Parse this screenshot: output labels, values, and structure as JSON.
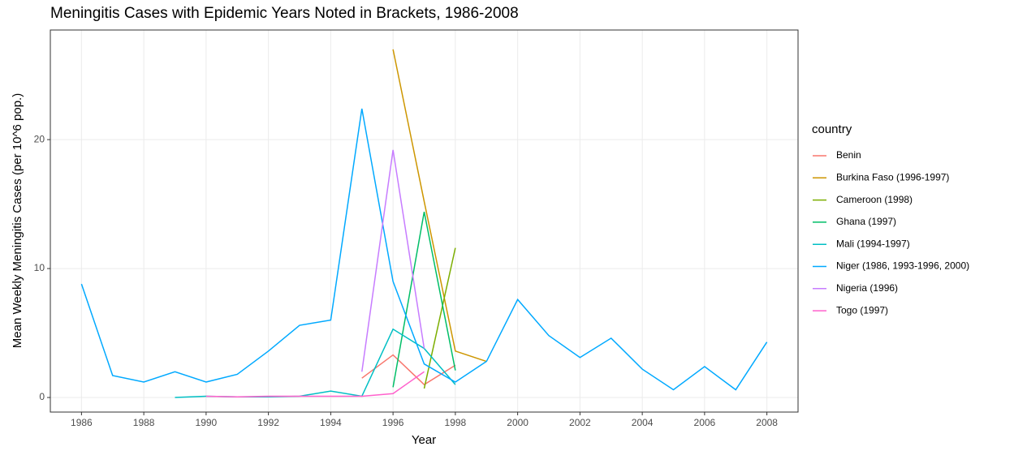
{
  "chart_data": {
    "type": "line",
    "title": "Meningitis Cases with Epidemic Years Noted in Brackets, 1986-2008",
    "x_label": "Year",
    "y_label": "Mean Weekly Meningitis Cases (per 10^6 pop.)",
    "legend_title": "country",
    "x": [
      1986,
      1987,
      1988,
      1989,
      1990,
      1991,
      1992,
      1993,
      1994,
      1995,
      1996,
      1997,
      1998,
      1999,
      2000,
      2001,
      2002,
      2003,
      2004,
      2005,
      2006,
      2007,
      2008
    ],
    "series": [
      {
        "name": "Benin",
        "color": "#F8766D",
        "values": [
          null,
          null,
          null,
          null,
          null,
          null,
          null,
          null,
          null,
          1.5,
          3.3,
          1.0,
          2.5,
          null,
          null,
          null,
          null,
          null,
          null,
          null,
          null,
          null,
          null
        ]
      },
      {
        "name": "Burkina Faso (1996-1997)",
        "color": "#CD9600",
        "values": [
          null,
          null,
          null,
          null,
          null,
          null,
          null,
          null,
          null,
          null,
          27.0,
          15.2,
          3.6,
          2.8,
          null,
          null,
          null,
          null,
          null,
          null,
          null,
          null,
          null
        ]
      },
      {
        "name": "Cameroon (1998)",
        "color": "#7CAE00",
        "values": [
          null,
          null,
          null,
          null,
          null,
          null,
          null,
          null,
          null,
          null,
          null,
          0.7,
          11.6,
          null,
          null,
          null,
          null,
          null,
          null,
          null,
          null,
          null,
          null
        ]
      },
      {
        "name": "Ghana (1997)",
        "color": "#00BE67",
        "values": [
          null,
          null,
          null,
          null,
          null,
          null,
          null,
          null,
          null,
          null,
          0.8,
          14.4,
          2.1,
          null,
          null,
          null,
          null,
          null,
          null,
          null,
          null,
          null,
          null
        ]
      },
      {
        "name": "Mali (1994-1997)",
        "color": "#00BFC4",
        "values": [
          null,
          null,
          null,
          0.0,
          0.1,
          0.05,
          0.05,
          0.1,
          0.5,
          0.1,
          5.3,
          3.8,
          1.0,
          null,
          null,
          null,
          null,
          null,
          null,
          null,
          null,
          null,
          null
        ]
      },
      {
        "name": "Niger (1986, 1993-1996, 2000)",
        "color": "#00A9FF",
        "values": [
          8.8,
          1.7,
          1.2,
          2.0,
          1.2,
          1.8,
          3.6,
          5.6,
          6.0,
          22.4,
          9.0,
          2.6,
          1.2,
          2.8,
          7.6,
          4.8,
          3.1,
          4.6,
          2.2,
          0.6,
          2.4,
          0.6,
          4.3
        ]
      },
      {
        "name": "Nigeria (1996)",
        "color": "#C77CFF",
        "values": [
          null,
          null,
          null,
          null,
          null,
          null,
          null,
          null,
          null,
          2.0,
          19.2,
          3.8,
          null,
          null,
          null,
          null,
          null,
          null,
          null,
          null,
          null,
          null,
          null
        ]
      },
      {
        "name": "Togo (1997)",
        "color": "#FF61CC",
        "values": [
          null,
          null,
          null,
          null,
          0.1,
          0.05,
          0.1,
          0.1,
          0.1,
          0.1,
          0.3,
          2.0,
          null,
          null,
          null,
          null,
          null,
          null,
          null,
          null,
          null,
          null,
          null
        ]
      }
    ],
    "xlim": [
      1985,
      2009
    ],
    "xticks": [
      1986,
      1988,
      1990,
      1992,
      1994,
      1996,
      1998,
      2000,
      2002,
      2004,
      2006,
      2008
    ],
    "ylim": [
      -1.13,
      28.5
    ],
    "yticks": [
      0,
      10,
      20
    ],
    "grid": true,
    "legend_position": "right"
  }
}
